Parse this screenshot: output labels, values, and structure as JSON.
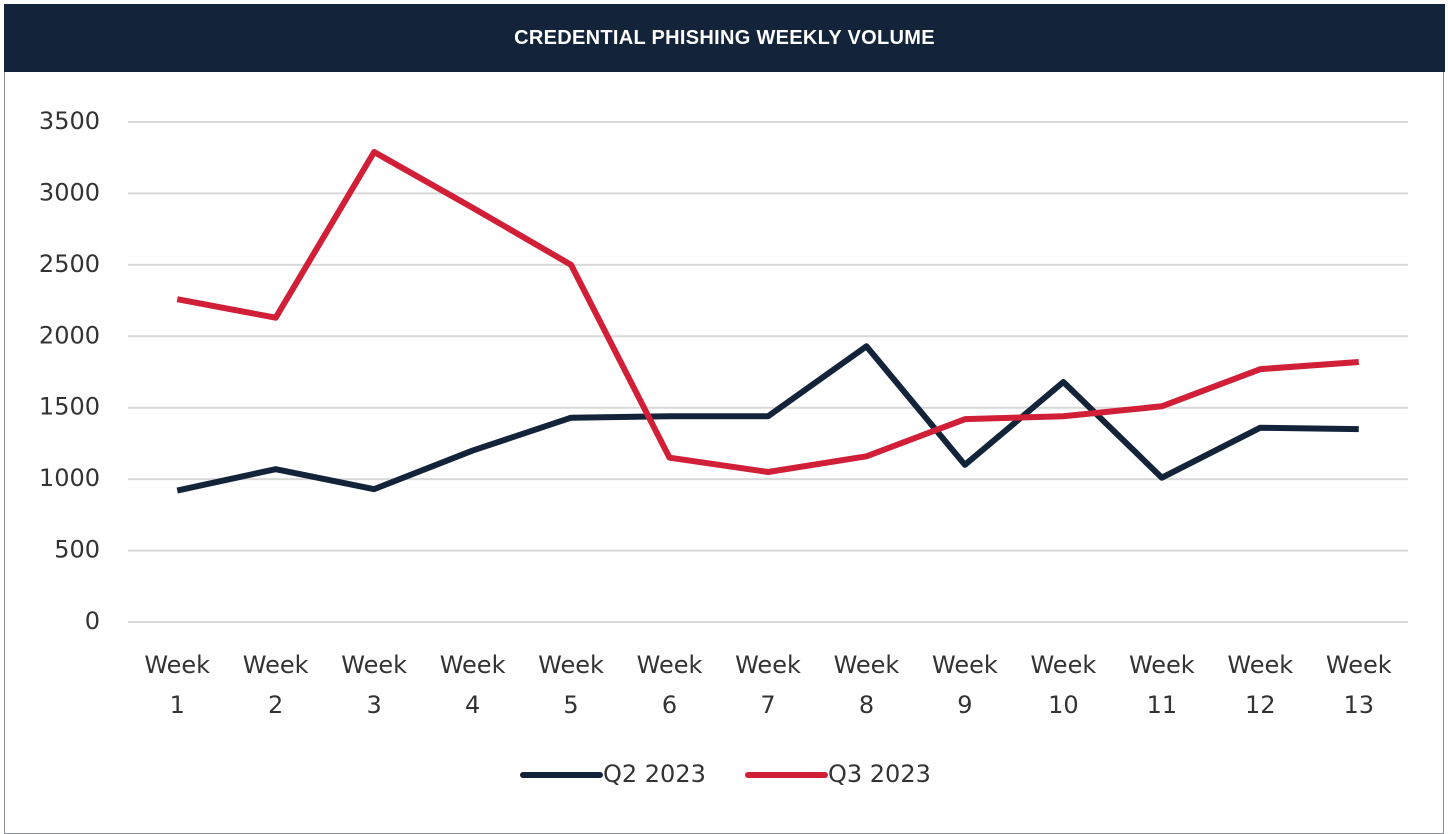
{
  "chart_data": {
    "type": "line",
    "title": "CREDENTIAL PHISHING WEEKLY VOLUME",
    "categories": [
      "Week 1",
      "Week 2",
      "Week 3",
      "Week 4",
      "Week 5",
      "Week 6",
      "Week 7",
      "Week 8",
      "Week 9",
      "Week 10",
      "Week 11",
      "Week 12",
      "Week 13"
    ],
    "series": [
      {
        "name": "Q2 2023",
        "color": "#13243a",
        "values": [
          920,
          1070,
          930,
          1200,
          1430,
          1440,
          1440,
          1930,
          1100,
          1680,
          1010,
          1360,
          1350
        ]
      },
      {
        "name": "Q3 2023",
        "color": "#d01f36",
        "values": [
          2260,
          2130,
          3290,
          2900,
          2500,
          1150,
          1050,
          1160,
          1420,
          1440,
          1510,
          1770,
          1820
        ]
      }
    ],
    "ylim": [
      0,
      3500
    ],
    "yticks": [
      0,
      500,
      1000,
      1500,
      2000,
      2500,
      3000,
      3500
    ],
    "grid": true,
    "legend": "bottom"
  }
}
